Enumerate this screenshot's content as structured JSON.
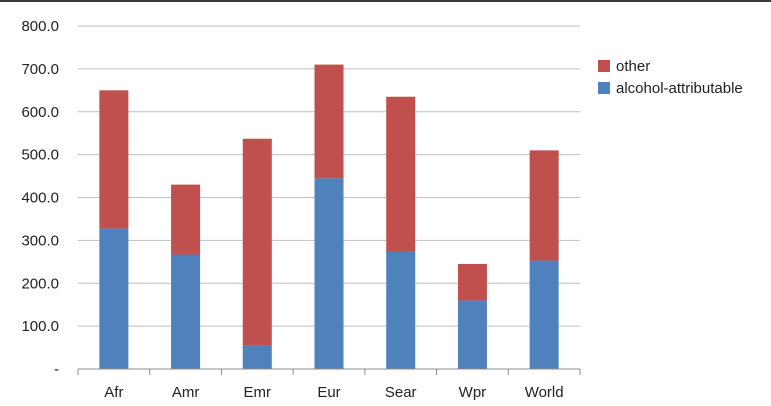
{
  "chart_data": {
    "type": "bar",
    "stacked": true,
    "categories": [
      "Afr",
      "Amr",
      "Emr",
      "Eur",
      "Sear",
      "Wpr",
      "World"
    ],
    "series": [
      {
        "name": "alcohol-attributable",
        "color": "#4f81bd",
        "values": [
          328,
          267,
          55,
          445,
          273,
          160,
          253
        ]
      },
      {
        "name": "other",
        "color": "#c0504d",
        "values": [
          322,
          163,
          482,
          265,
          362,
          85,
          257
        ]
      }
    ],
    "y_ticks": [
      "-",
      "100.0",
      "200.0",
      "300.0",
      "400.0",
      "500.0",
      "600.0",
      "700.0",
      "800.0"
    ],
    "ylim": [
      0,
      800
    ],
    "grid": true,
    "legend_position": "right",
    "legend": [
      {
        "label": "other",
        "color": "#c0504d"
      },
      {
        "label": "alcohol-attributable",
        "color": "#4f81bd"
      }
    ]
  }
}
